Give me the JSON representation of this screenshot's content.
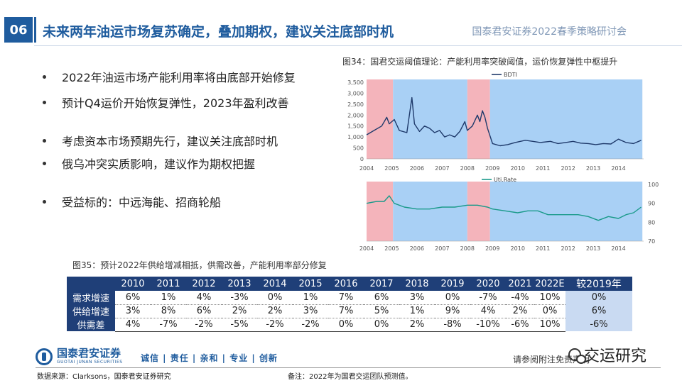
{
  "header": {
    "slide_number": "06",
    "title": "未来两年油运市场复苏确定，叠加期权，建议关注底部时机",
    "event_name": "国泰君安证券2022春季策略研讨会"
  },
  "bullets": [
    "2022年油运市场产能利用率将由底部开始修复",
    "预计Q4运价开始恢复弹性，2023年盈利改善",
    "考虑资本市场预期先行，建议关注底部时机",
    "俄乌冲突实质影响，建议作为期权把握",
    "受益标的：中远海能、招商轮船"
  ],
  "fig34": {
    "caption": "图34：国君交运阈值理论：产能利用率突破阈值，运价恢复弹性中枢提升"
  },
  "chart_data": [
    {
      "type": "line",
      "series": [
        {
          "name": "BDTI"
        }
      ],
      "x_ticks": [
        "2004",
        "2005",
        "2006",
        "2007",
        "2008",
        "2009",
        "2010",
        "2011",
        "2012",
        "2013",
        "2014"
      ],
      "x": [
        2004.0,
        2004.3,
        2004.6,
        2004.8,
        2004.9,
        2005.1,
        2005.3,
        2005.6,
        2005.8,
        2005.9,
        2006.1,
        2006.3,
        2006.5,
        2006.7,
        2006.9,
        2007.1,
        2007.3,
        2007.5,
        2007.7,
        2007.9,
        2008.0,
        2008.2,
        2008.4,
        2008.5,
        2008.6,
        2008.7,
        2008.8,
        2009.0,
        2009.3,
        2009.6,
        2009.9,
        2010.3,
        2010.6,
        2010.9,
        2011.3,
        2011.6,
        2011.9,
        2012.2,
        2012.5,
        2012.8,
        2013.1,
        2013.4,
        2013.7,
        2014.0,
        2014.3,
        2014.6,
        2014.9
      ],
      "y": [
        1100,
        1300,
        1500,
        1900,
        1600,
        1800,
        1300,
        1200,
        2800,
        1600,
        1250,
        1500,
        1400,
        1200,
        1300,
        1000,
        1100,
        1000,
        1250,
        1700,
        1300,
        1500,
        2000,
        1700,
        2200,
        1900,
        1400,
        700,
        600,
        650,
        750,
        850,
        800,
        750,
        800,
        700,
        750,
        800,
        720,
        700,
        650,
        700,
        680,
        900,
        750,
        700,
        850
      ],
      "ylim": [
        0,
        3500
      ],
      "y_ticks": [
        "3,500",
        "3,000",
        "2,500",
        "2,000",
        "1,500",
        "1,000",
        "500",
        "0"
      ],
      "y_tick_values": [
        3500,
        3000,
        2500,
        2000,
        1500,
        1000,
        500,
        0
      ],
      "shaded_regions": [
        {
          "from": 2004.0,
          "to": 2005.05,
          "color": "#f4b4bb"
        },
        {
          "from": 2005.05,
          "to": 2008.0,
          "color": "#a9d0f5"
        },
        {
          "from": 2008.0,
          "to": 2008.9,
          "color": "#f4b4bb"
        },
        {
          "from": 2008.9,
          "to": 2014.95,
          "color": "#a9d0f5"
        }
      ],
      "line_color": "#1f3a6b"
    },
    {
      "type": "line",
      "series": [
        {
          "name": "Uti.Rate"
        }
      ],
      "x_ticks": [
        "2004",
        "2005",
        "2006",
        "2007",
        "2008",
        "2009",
        "2010",
        "2011",
        "2012",
        "2013",
        "2014"
      ],
      "x": [
        2004.0,
        2004.4,
        2004.7,
        2004.9,
        2005.1,
        2005.5,
        2006.0,
        2006.5,
        2007.0,
        2007.5,
        2008.0,
        2008.4,
        2008.8,
        2009.0,
        2009.5,
        2010.0,
        2010.4,
        2010.8,
        2011.2,
        2011.6,
        2012.0,
        2012.4,
        2012.8,
        2013.2,
        2013.6,
        2014.0,
        2014.3,
        2014.6,
        2014.9
      ],
      "y": [
        90,
        91,
        91,
        94,
        90,
        88,
        87,
        87,
        88,
        88,
        89,
        89,
        88,
        87,
        86,
        85,
        86,
        86,
        84,
        84,
        84,
        84,
        83,
        81,
        83,
        82,
        84,
        85,
        88
      ],
      "ylim": [
        70,
        100
      ],
      "y_ticks": [
        "100",
        "90",
        "80",
        "70"
      ],
      "y_tick_values": [
        100,
        90,
        80,
        70
      ],
      "shaded_regions": [
        {
          "from": 2004.0,
          "to": 2005.05,
          "color": "#f4b4bb"
        },
        {
          "from": 2005.05,
          "to": 2008.0,
          "color": "#a9d0f5"
        },
        {
          "from": 2008.0,
          "to": 2008.9,
          "color": "#f4b4bb"
        },
        {
          "from": 2008.9,
          "to": 2014.95,
          "color": "#a9d0f5"
        }
      ],
      "line_color": "#1a9a8a"
    },
    {
      "type": "table",
      "title": "图35：预计2022年供给增减相抵，供需改善，产能利用率部分修复",
      "columns": [
        "2010",
        "2011",
        "2012",
        "2013",
        "2014",
        "2015",
        "2016",
        "2017",
        "2018",
        "2019",
        "2020",
        "2021",
        "2022E",
        "较2019年"
      ],
      "rows": [
        {
          "label": "需求增速",
          "values": [
            "6%",
            "1%",
            "4%",
            "-3%",
            "0%",
            "1%",
            "7%",
            "6%",
            "3%",
            "0%",
            "-7%",
            "-4%",
            "10%",
            "0%"
          ]
        },
        {
          "label": "供给增速",
          "values": [
            "3%",
            "8%",
            "6%",
            "2%",
            "2%",
            "3%",
            "7%",
            "5%",
            "1%",
            "9%",
            "4%",
            "2%",
            "0%",
            "6%"
          ]
        },
        {
          "label": "供需差",
          "values": [
            "4%",
            "-7%",
            "-2%",
            "-5%",
            "-2%",
            "-2%",
            "0%",
            "0%",
            "2%",
            "-8%",
            "-10%",
            "-6%",
            "10%",
            "-6%"
          ]
        }
      ]
    }
  ],
  "footer": {
    "logo_cn": "国泰君安证券",
    "logo_en": "GUOTAI JUNAN SECURITIES",
    "slogan": "诚信 | 责任 | 亲和 | 专业 | 创新",
    "disclaimer": "请参阅附注免责声明",
    "watermark": "交运研究",
    "source": "数据来源：Clarksons，国泰君安证券研究",
    "note": "备注：2022年为国君交运团队预测值。"
  },
  "colors": {
    "brand_blue": "#1f5c9e",
    "table_header": "#1f3f78",
    "compare_column": "#c9daf2"
  },
  "icons": {
    "logo": "guotai-junan-logo-icon",
    "watermark": "wechat-icon"
  }
}
